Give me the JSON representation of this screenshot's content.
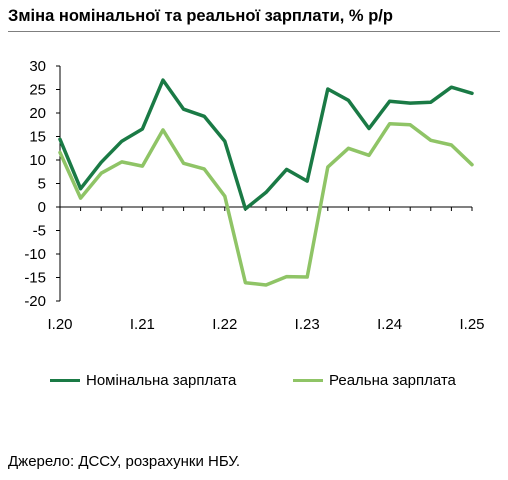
{
  "title": "Зміна номінальної та реальної зарплати, % р/р",
  "source": "Джерело: ДССУ, розрахунки НБУ.",
  "chart_data": {
    "type": "line",
    "title": "Зміна номінальної та реальної зарплати, % р/р",
    "xlabel": "",
    "ylabel": "",
    "ylim": [
      -20,
      30
    ],
    "yticks": [
      30,
      25,
      20,
      15,
      10,
      5,
      0,
      -5,
      -10,
      -15,
      -20
    ],
    "xticks": [
      "I.20",
      "I.21",
      "I.22",
      "I.23",
      "I.24",
      "I.25"
    ],
    "xtick_positions": [
      0,
      4,
      8,
      12,
      16,
      20
    ],
    "x": [
      "I.20",
      "II.20",
      "III.20",
      "IV.20",
      "I.21",
      "II.21",
      "III.21",
      "IV.21",
      "I.22",
      "II.22",
      "III.22",
      "IV.22",
      "I.23",
      "II.23",
      "III.23",
      "IV.23",
      "I.24",
      "II.24",
      "III.24",
      "IV.24",
      "I.25"
    ],
    "series": [
      {
        "name": "Номінальна зарплата",
        "color": "#1a7a45",
        "values": [
          14.4,
          3.9,
          9.5,
          14.0,
          16.6,
          27.0,
          20.8,
          19.3,
          14.0,
          -0.4,
          3.1,
          8.0,
          5.5,
          25.1,
          22.7,
          16.7,
          22.5,
          22.1,
          22.3,
          25.5,
          24.2
        ]
      },
      {
        "name": "Реальна зарплата",
        "color": "#8fc466",
        "values": [
          11.6,
          1.9,
          7.2,
          9.6,
          8.7,
          16.4,
          9.3,
          8.1,
          2.3,
          -16.1,
          -16.6,
          -14.8,
          -14.9,
          8.5,
          12.5,
          11.0,
          17.7,
          17.5,
          14.2,
          13.2,
          9.0
        ]
      }
    ],
    "grid": false,
    "legend_position": "bottom"
  }
}
